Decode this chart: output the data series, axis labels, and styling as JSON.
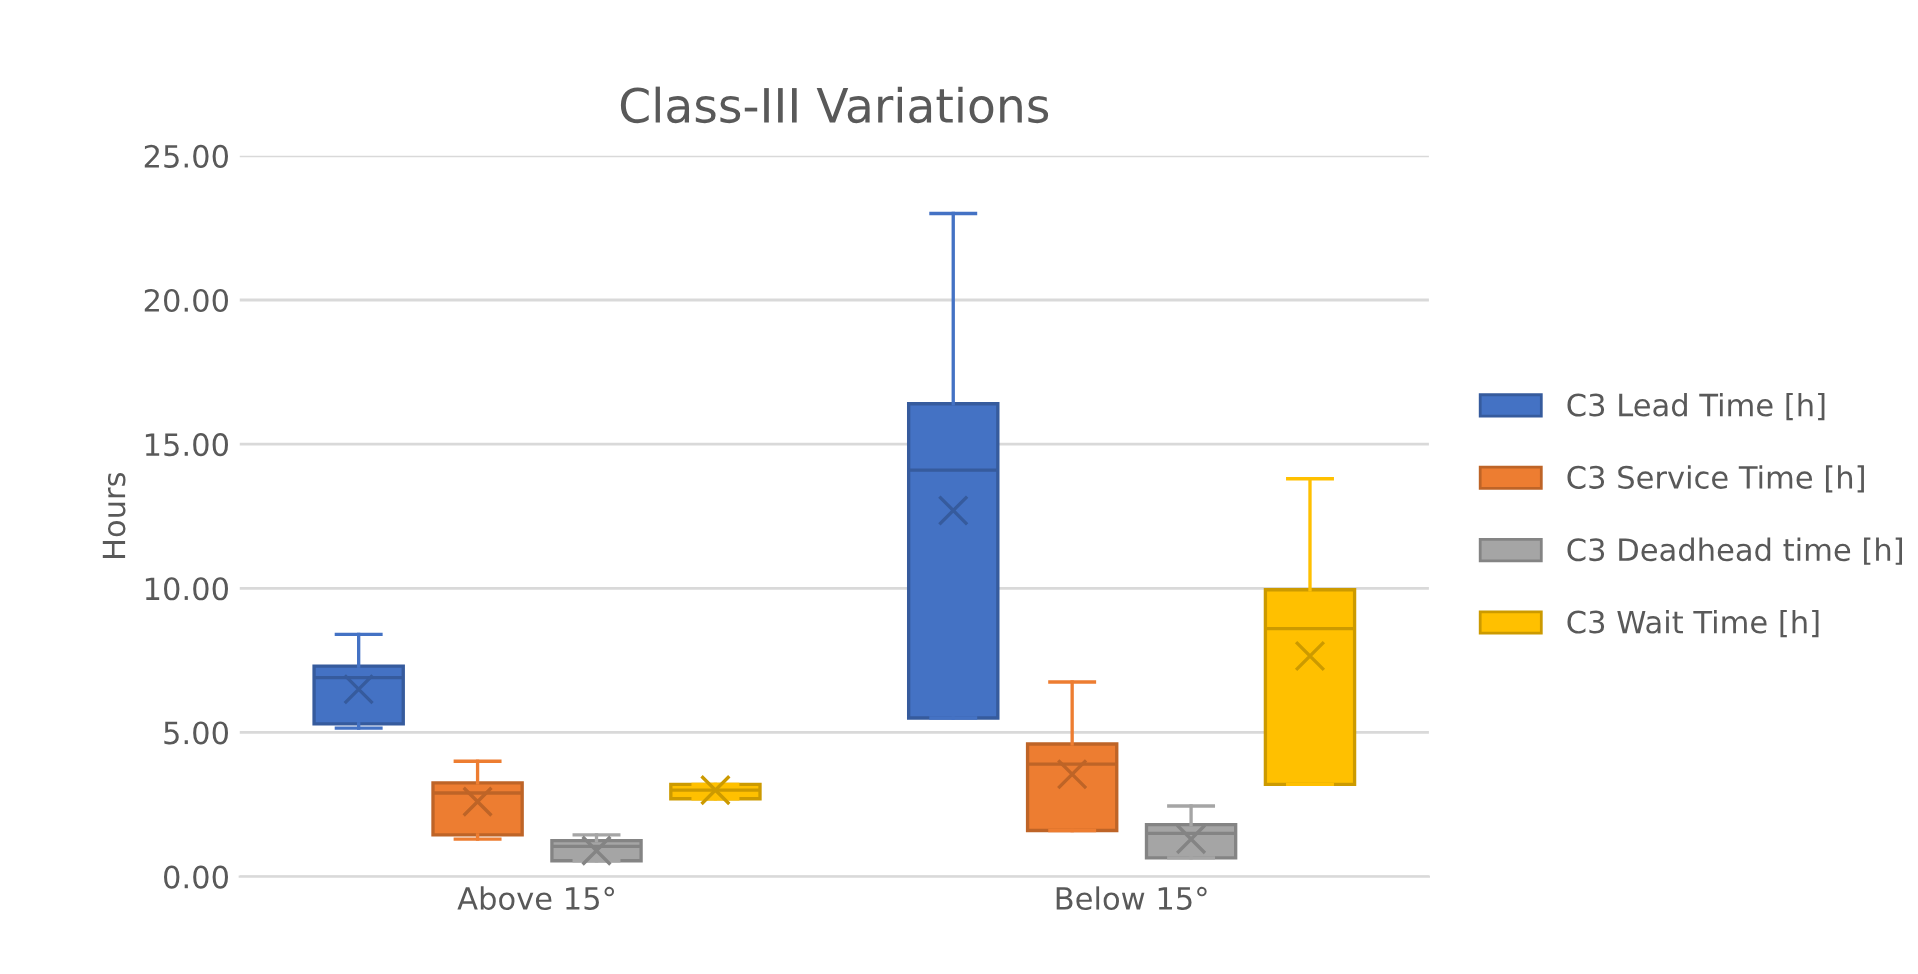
{
  "chart_data": {
    "type": "box",
    "title": "Class-III Variations",
    "ylabel": "Hours",
    "categories": [
      "Above 15°",
      "Below 15°"
    ],
    "ylim": [
      0,
      25
    ],
    "yticks": [
      {
        "value": 0,
        "label": "0.00"
      },
      {
        "value": 5,
        "label": "5.00"
      },
      {
        "value": 10,
        "label": "10.00"
      },
      {
        "value": 15,
        "label": "15.00"
      },
      {
        "value": 20,
        "label": "20.00"
      },
      {
        "value": 25,
        "label": "25.00"
      }
    ],
    "grid": "y",
    "legend": "right",
    "series": [
      {
        "name": "C3 Lead Time [h]",
        "color": "#4472c4",
        "boxes": [
          {
            "low": 5.15,
            "q1": 5.3,
            "median": 6.9,
            "q3": 7.3,
            "high": 8.4,
            "mean": 6.5
          },
          {
            "low": 5.5,
            "q1": 5.5,
            "median": 14.1,
            "q3": 16.4,
            "high": 23.0,
            "mean": 12.7
          }
        ]
      },
      {
        "name": "C3 Service Time [h]",
        "color": "#ed7d31",
        "boxes": [
          {
            "low": 1.3,
            "q1": 1.45,
            "median": 2.9,
            "q3": 3.25,
            "high": 4.0,
            "mean": 2.6
          },
          {
            "low": 1.6,
            "q1": 1.6,
            "median": 3.9,
            "q3": 4.6,
            "high": 6.75,
            "mean": 3.55
          }
        ]
      },
      {
        "name": "C3 Deadhead time [h]",
        "color": "#a5a5a5",
        "boxes": [
          {
            "low": 0.55,
            "q1": 0.55,
            "median": 1.05,
            "q3": 1.25,
            "high": 1.45,
            "mean": 0.9
          },
          {
            "low": 0.65,
            "q1": 0.65,
            "median": 1.5,
            "q3": 1.8,
            "high": 2.45,
            "mean": 1.3
          }
        ]
      },
      {
        "name": "C3 Wait Time [h]",
        "color": "#ffc000",
        "boxes": [
          {
            "low": 2.7,
            "q1": 2.7,
            "median": 3.0,
            "q3": 3.2,
            "high": 3.2,
            "mean": 3.0
          },
          {
            "low": 3.2,
            "q1": 3.2,
            "median": 8.6,
            "q3": 9.95,
            "high": 13.8,
            "mean": 7.65
          }
        ]
      }
    ]
  }
}
